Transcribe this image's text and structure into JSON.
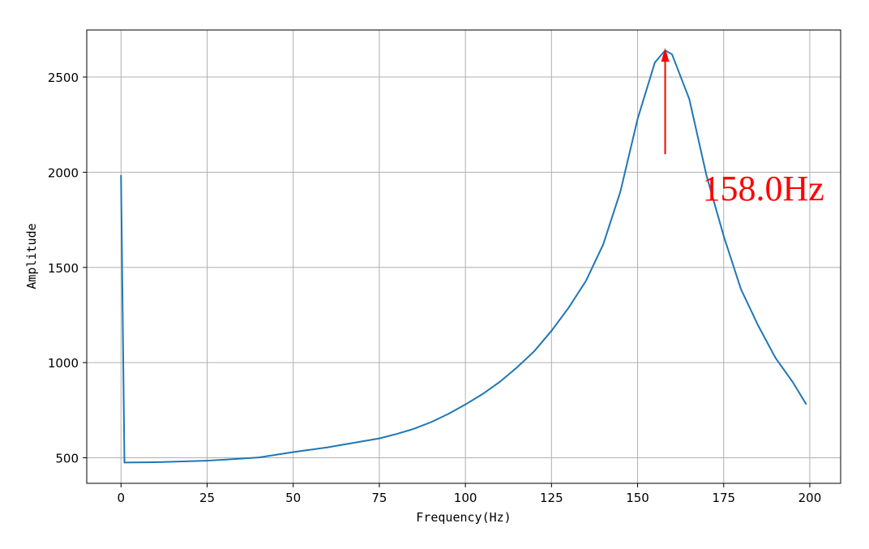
{
  "chart_data": {
    "type": "line",
    "xlabel": "Frequency(Hz)",
    "ylabel": "Amplitude",
    "x": [
      0,
      1,
      10,
      25,
      30,
      40,
      50,
      60,
      75,
      80,
      85,
      90,
      95,
      100,
      105,
      110,
      115,
      120,
      125,
      130,
      135,
      140,
      145,
      150,
      155,
      158,
      160,
      165,
      170,
      175,
      180,
      185,
      190,
      195,
      199
    ],
    "series": [
      {
        "color": "#1f77b4",
        "values": [
          1985,
          475,
          477,
          485,
          490,
          502,
          530,
          555,
          602,
          625,
          652,
          687,
          730,
          780,
          835,
          899,
          975,
          1060,
          1167,
          1289,
          1429,
          1620,
          1898,
          2280,
          2576,
          2640,
          2619,
          2385,
          1983,
          1665,
          1386,
          1195,
          1026,
          899,
          780
        ]
      }
    ],
    "xlim": [
      -9.95,
      208.95
    ],
    "ylim": [
      366,
      2747
    ],
    "xticks": [
      0,
      25,
      50,
      75,
      100,
      125,
      150,
      175,
      200
    ],
    "yticks": [
      500,
      1000,
      1500,
      2000,
      2500
    ],
    "grid": true,
    "annotation": {
      "text": "158.0Hz",
      "x": 158,
      "y": 2640,
      "color": "#ff0000"
    }
  }
}
